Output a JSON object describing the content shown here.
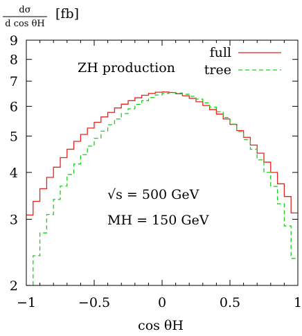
{
  "chart_data": {
    "type": "line",
    "title": "ZH production",
    "xlabel": "cos θH",
    "ylabel": "[fb]",
    "ylabel_fraction": {
      "numerator": "dσ",
      "denominator": "d cos θH"
    },
    "xlim": [
      -1,
      1
    ],
    "ylim": [
      2,
      9
    ],
    "yscale": "log",
    "grid": false,
    "legend_position": "top-right",
    "x_ticks": [
      -1,
      -0.5,
      0,
      0.5,
      1
    ],
    "x_tick_labels": [
      "−1",
      "−0.5",
      "0",
      "0.5",
      "1"
    ],
    "y_ticks": [
      2,
      3,
      4,
      5,
      6,
      7,
      8,
      9
    ],
    "y_tick_labels": [
      "2",
      "3",
      "4",
      "5",
      "6",
      "7",
      "8",
      "9"
    ],
    "annotations": [
      "√s = 500 GeV",
      "MH = 150 GeV"
    ],
    "x": [
      -0.975,
      -0.925,
      -0.875,
      -0.825,
      -0.775,
      -0.725,
      -0.675,
      -0.625,
      -0.575,
      -0.525,
      -0.475,
      -0.425,
      -0.375,
      -0.325,
      -0.275,
      -0.225,
      -0.175,
      -0.125,
      -0.075,
      -0.025,
      0.025,
      0.075,
      0.125,
      0.175,
      0.225,
      0.275,
      0.325,
      0.375,
      0.425,
      0.475,
      0.525,
      0.575,
      0.625,
      0.675,
      0.725,
      0.775,
      0.825,
      0.875,
      0.925,
      0.975
    ],
    "series": [
      {
        "name": "full",
        "color": "#e8201a",
        "dash": "solid",
        "values": [
          3.08,
          3.35,
          3.62,
          3.88,
          4.13,
          4.38,
          4.61,
          4.84,
          5.05,
          5.25,
          5.44,
          5.62,
          5.78,
          5.94,
          6.08,
          6.21,
          6.32,
          6.42,
          6.49,
          6.54,
          6.55,
          6.53,
          6.48,
          6.4,
          6.3,
          6.17,
          6.03,
          5.88,
          5.72,
          5.55,
          5.37,
          5.17,
          4.96,
          4.73,
          4.5,
          4.26,
          4.0,
          3.73,
          3.45,
          3.12
        ]
      },
      {
        "name": "tree",
        "color": "#18d018",
        "dash": "dashed",
        "values": [
          2.0,
          2.4,
          2.76,
          3.09,
          3.39,
          3.68,
          3.95,
          4.21,
          4.46,
          4.7,
          4.93,
          5.15,
          5.36,
          5.55,
          5.74,
          5.91,
          6.07,
          6.21,
          6.33,
          6.43,
          6.49,
          6.52,
          6.51,
          6.46,
          6.38,
          6.27,
          6.13,
          5.97,
          5.8,
          5.6,
          5.38,
          5.14,
          4.89,
          4.61,
          4.32,
          4.0,
          3.67,
          3.3,
          2.88,
          2.36
        ]
      }
    ]
  }
}
